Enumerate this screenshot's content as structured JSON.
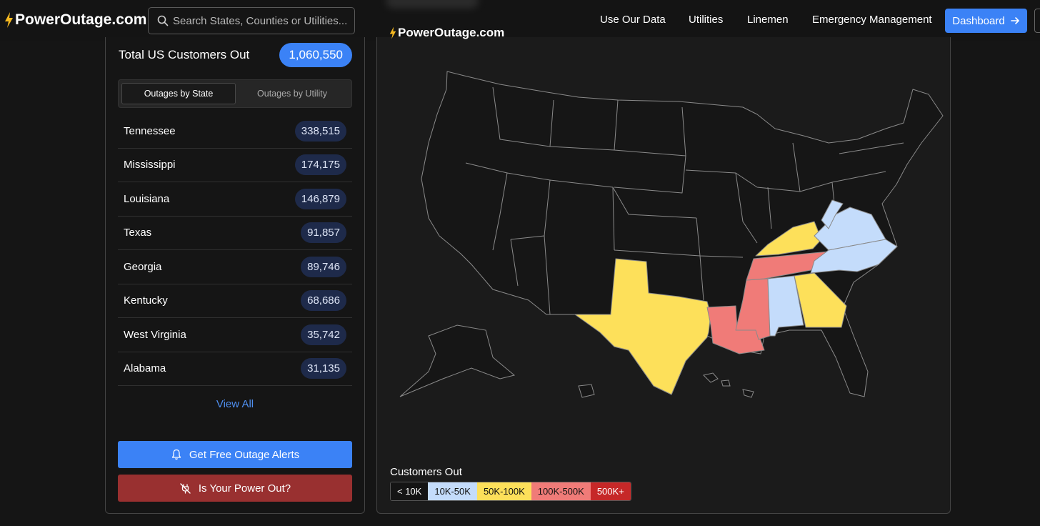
{
  "nav": {
    "brand": "PowerOutage.com",
    "search_placeholder": "Search States, Counties or Utilities...",
    "links": [
      "Use Our Data",
      "Utilities",
      "Linemen",
      "Emergency Management"
    ],
    "dashboard_label": "Dashboard"
  },
  "summary": {
    "total_label": "Total US Customers Out",
    "total_value": "1,060,550"
  },
  "tabs": [
    {
      "label": "Outages by State",
      "active": true
    },
    {
      "label": "Outages by Utility",
      "active": false
    }
  ],
  "states": [
    {
      "name": "Tennessee",
      "count": "338,515"
    },
    {
      "name": "Mississippi",
      "count": "174,175"
    },
    {
      "name": "Louisiana",
      "count": "146,879"
    },
    {
      "name": "Texas",
      "count": "91,857"
    },
    {
      "name": "Georgia",
      "count": "89,746"
    },
    {
      "name": "Kentucky",
      "count": "68,686"
    },
    {
      "name": "West Virginia",
      "count": "35,742"
    },
    {
      "name": "Alabama",
      "count": "31,135"
    }
  ],
  "view_all_label": "View All",
  "alerts_button": "Get Free Outage Alerts",
  "power_button": "Is Your Power Out?",
  "map": {
    "brand": "PowerOutage.com",
    "legend_title": "Customers Out",
    "legend": [
      {
        "label": "< 10K",
        "color": "#141414",
        "text": "#ffffff"
      },
      {
        "label": "10K-50K",
        "color": "#c4dcfb",
        "text": "#111111"
      },
      {
        "label": "50K-100K",
        "color": "#fde05a",
        "text": "#111111"
      },
      {
        "label": "100K-500K",
        "color": "#f07b78",
        "text": "#111111"
      },
      {
        "label": "500K+",
        "color": "#c62828",
        "text": "#ffffff"
      }
    ]
  },
  "colors": {
    "accent": "#3b82f6",
    "danger": "#993030",
    "bolt": "#f5b820"
  }
}
